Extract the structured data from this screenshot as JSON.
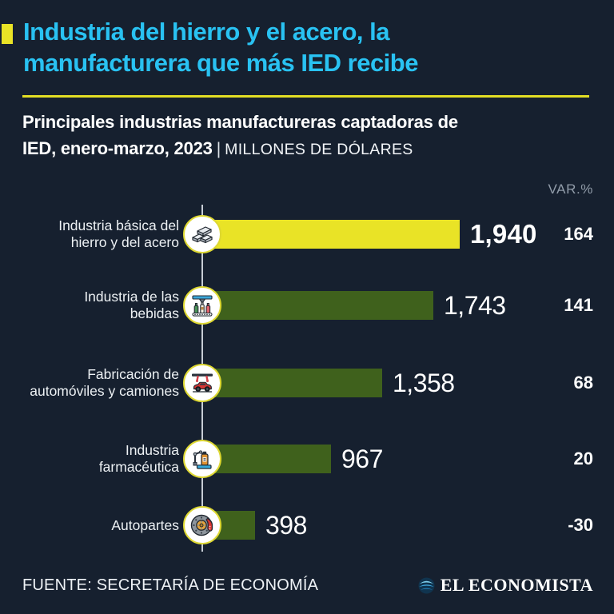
{
  "header": {
    "title_line1": "Industria del hierro y el acero, la",
    "title_line2": "manufacturera que más IED recibe",
    "subtitle_line1": "Principales industrias manufactureras captadoras de",
    "subtitle_line2_bold": "IED, enero-marzo, 2023",
    "subtitle_separator": "|",
    "subtitle_units": "MILLONES DE DÓLARES"
  },
  "chart_data": {
    "type": "bar",
    "orientation": "horizontal",
    "title": "Principales industrias manufactureras captadoras de IED, enero-marzo, 2023",
    "units": "MILLONES DE DÓLARES",
    "var_header": "VAR.%",
    "xlim": [
      0,
      1940
    ],
    "max_value": 1940,
    "categories": [
      "Industria básica del hierro y del acero",
      "Industria de las bebidas",
      "Fabricación de automóviles y camiones",
      "Industria farmacéutica",
      "Autopartes"
    ],
    "values": [
      1940,
      1743,
      1358,
      967,
      398
    ],
    "var_pct": [
      164,
      141,
      68,
      20,
      -30
    ],
    "rows": [
      {
        "label": [
          "Industria básica del",
          "hierro y del acero"
        ],
        "value": 1940,
        "value_label": "1,940",
        "var_label": "164",
        "bar_color": "#e9e326",
        "icon": "steel-ingots-icon"
      },
      {
        "label": [
          "Industria de las",
          "bebidas"
        ],
        "value": 1743,
        "value_label": "1,743",
        "var_label": "141",
        "bar_color": "#3f611c",
        "icon": "beverage-bottling-icon"
      },
      {
        "label": [
          "Fabricación de",
          "automóviles y camiones"
        ],
        "value": 1358,
        "value_label": "1,358",
        "var_label": "68",
        "bar_color": "#3f611c",
        "icon": "car-assembly-icon"
      },
      {
        "label": [
          "Industria",
          "farmacéutica"
        ],
        "value": 967,
        "value_label": "967",
        "var_label": "20",
        "bar_color": "#3f611c",
        "icon": "pharma-bottle-icon"
      },
      {
        "label": [
          "Autopartes",
          ""
        ],
        "value": 398,
        "value_label": "398",
        "var_label": "-30",
        "bar_color": "#3f611c",
        "icon": "brake-disc-icon"
      }
    ]
  },
  "footer": {
    "source": "FUENTE: SECRETARÍA DE ECONOMÍA",
    "brand": "EL ECONOMISTA"
  },
  "colors": {
    "background": "#16202f",
    "accent_cyan": "#29c2f2",
    "accent_yellow": "#e9e326",
    "bar_green": "#3f611c",
    "muted_gray": "#919ca9"
  }
}
